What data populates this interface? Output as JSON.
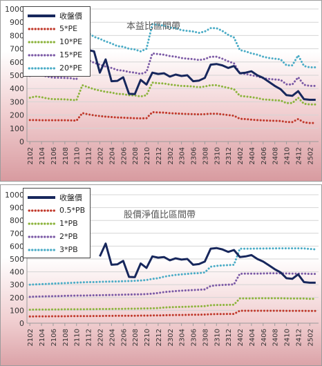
{
  "chart_data": [
    {
      "type": "line",
      "title": "本益比區間帶",
      "ylim": [
        0,
        1000
      ],
      "yticks": [
        0,
        100,
        200,
        300,
        400,
        500,
        600,
        700,
        800,
        900,
        1000
      ],
      "x": [
        "2102",
        "2103",
        "2104",
        "2105",
        "2106",
        "2107",
        "2108",
        "2109",
        "2110",
        "2111",
        "2112",
        "2201",
        "2202",
        "2203",
        "2204",
        "2205",
        "2206",
        "2207",
        "2208",
        "2209",
        "2210",
        "2211",
        "2212",
        "2301",
        "2302",
        "2303",
        "2304",
        "2305",
        "2306",
        "2307",
        "2308",
        "2309",
        "2310",
        "2311",
        "2312",
        "2401",
        "2402",
        "2403",
        "2404",
        "2405",
        "2406",
        "2407",
        "2408",
        "2409",
        "2410",
        "2411",
        "2412",
        "2501",
        "2502",
        "2503"
      ],
      "xtick_labels": [
        "2102",
        "2104",
        "2106",
        "2108",
        "2110",
        "2112",
        "2202",
        "2204",
        "2206",
        "2208",
        "2210",
        "2212",
        "2302",
        "2304",
        "2306",
        "2308",
        "2310",
        "2312",
        "2402",
        "2404",
        "2406",
        "2408",
        "2410",
        "2412",
        "2502"
      ],
      "grid": true,
      "legend": "top-left",
      "series": [
        {
          "name": "收盤價",
          "style": "solid",
          "color": "#17275c",
          "values": [
            null,
            null,
            null,
            null,
            null,
            null,
            null,
            null,
            null,
            790,
            690,
            680,
            520,
            620,
            455,
            458,
            485,
            360,
            358,
            465,
            430,
            520,
            510,
            515,
            490,
            505,
            495,
            500,
            455,
            460,
            480,
            580,
            585,
            575,
            555,
            570,
            515,
            520,
            530,
            500,
            480,
            450,
            420,
            395,
            350,
            345,
            380,
            320,
            315,
            315
          ]
        },
        {
          "name": "5*PE",
          "style": "dotted",
          "color": "#c0392b",
          "values": [
            162,
            162,
            161,
            161,
            161,
            161,
            161,
            160,
            158,
            215,
            205,
            198,
            192,
            188,
            185,
            182,
            180,
            178,
            176,
            175,
            176,
            222,
            220,
            218,
            214,
            212,
            210,
            208,
            207,
            205,
            207,
            210,
            210,
            205,
            200,
            195,
            172,
            170,
            165,
            162,
            160,
            158,
            157,
            155,
            148,
            147,
            170,
            145,
            140,
            140
          ]
        },
        {
          "name": "10*PE",
          "style": "dotted",
          "color": "#8db43e",
          "values": [
            330,
            340,
            335,
            325,
            320,
            320,
            318,
            315,
            312,
            425,
            410,
            395,
            385,
            375,
            370,
            360,
            358,
            350,
            348,
            340,
            350,
            445,
            440,
            438,
            430,
            425,
            420,
            418,
            415,
            410,
            415,
            425,
            425,
            415,
            405,
            395,
            345,
            340,
            335,
            328,
            318,
            315,
            312,
            310,
            290,
            290,
            330,
            285,
            280,
            280
          ]
        },
        {
          "name": "15*PE",
          "style": "dotted",
          "color": "#7b5aa6",
          "values": [
            495,
            505,
            500,
            490,
            482,
            482,
            480,
            478,
            470,
            640,
            615,
            595,
            580,
            565,
            555,
            540,
            535,
            525,
            520,
            510,
            525,
            665,
            660,
            655,
            645,
            640,
            630,
            625,
            622,
            615,
            622,
            640,
            640,
            625,
            605,
            590,
            515,
            510,
            500,
            492,
            478,
            472,
            468,
            465,
            432,
            430,
            485,
            428,
            420,
            420
          ]
        },
        {
          "name": "20*PE",
          "style": "dotted",
          "color": "#4bacc6",
          "values": [
            null,
            null,
            null,
            null,
            null,
            null,
            null,
            null,
            null,
            855,
            820,
            790,
            775,
            755,
            740,
            720,
            715,
            700,
            695,
            680,
            700,
            885,
            880,
            875,
            860,
            855,
            840,
            835,
            830,
            820,
            830,
            855,
            855,
            835,
            805,
            785,
            690,
            680,
            665,
            655,
            640,
            630,
            625,
            620,
            575,
            575,
            650,
            570,
            560,
            560
          ]
        }
      ]
    },
    {
      "type": "line",
      "title": "股價淨值比區間帶",
      "ylim": [
        0,
        1000
      ],
      "yticks": [
        0,
        100,
        200,
        300,
        400,
        500,
        600,
        700,
        800,
        900,
        1000
      ],
      "x": [
        "2102",
        "2103",
        "2104",
        "2105",
        "2106",
        "2107",
        "2108",
        "2109",
        "2110",
        "2111",
        "2112",
        "2201",
        "2202",
        "2203",
        "2204",
        "2205",
        "2206",
        "2207",
        "2208",
        "2209",
        "2210",
        "2211",
        "2212",
        "2301",
        "2302",
        "2303",
        "2304",
        "2305",
        "2306",
        "2307",
        "2308",
        "2309",
        "2310",
        "2311",
        "2312",
        "2401",
        "2402",
        "2403",
        "2404",
        "2405",
        "2406",
        "2407",
        "2408",
        "2409",
        "2410",
        "2411",
        "2412",
        "2501",
        "2502",
        "2503"
      ],
      "xtick_labels": [
        "2102",
        "2104",
        "2106",
        "2108",
        "2110",
        "2112",
        "2202",
        "2204",
        "2206",
        "2208",
        "2210",
        "2212",
        "2302",
        "2304",
        "2306",
        "2308",
        "2310",
        "2312",
        "2402",
        "2404",
        "2406",
        "2408",
        "2410",
        "2412",
        "2502"
      ],
      "grid": true,
      "legend": "top-left",
      "series": [
        {
          "name": "收盤價",
          "style": "solid",
          "color": "#17275c",
          "values": [
            null,
            null,
            null,
            null,
            null,
            null,
            null,
            null,
            null,
            null,
            null,
            null,
            520,
            620,
            455,
            458,
            485,
            360,
            358,
            465,
            430,
            520,
            510,
            515,
            490,
            505,
            495,
            500,
            455,
            460,
            480,
            580,
            585,
            575,
            555,
            570,
            515,
            520,
            530,
            500,
            480,
            450,
            420,
            395,
            350,
            345,
            380,
            320,
            315,
            315
          ]
        },
        {
          "name": "0.5*PB",
          "style": "dotted",
          "color": "#c0392b",
          "values": [
            52,
            53,
            53,
            53,
            54,
            54,
            54,
            55,
            55,
            55,
            55,
            56,
            56,
            57,
            57,
            58,
            58,
            58,
            58,
            59,
            59,
            60,
            60,
            62,
            63,
            64,
            64,
            65,
            66,
            66,
            67,
            70,
            71,
            71,
            72,
            72,
            97,
            97,
            97,
            97,
            97,
            97,
            97,
            97,
            96,
            96,
            96,
            96,
            95,
            95
          ]
        },
        {
          "name": "1*PB",
          "style": "dotted",
          "color": "#8db43e",
          "values": [
            105,
            106,
            106,
            106,
            107,
            107,
            108,
            108,
            108,
            108,
            109,
            109,
            110,
            110,
            111,
            112,
            112,
            113,
            113,
            114,
            115,
            116,
            118,
            122,
            124,
            126,
            127,
            128,
            130,
            131,
            133,
            140,
            142,
            142,
            143,
            144,
            193,
            193,
            193,
            194,
            194,
            194,
            194,
            194,
            193,
            192,
            192,
            192,
            190,
            190
          ]
        },
        {
          "name": "2*PB",
          "style": "dotted",
          "color": "#7b5aa6",
          "values": [
            205,
            207,
            208,
            209,
            210,
            211,
            213,
            214,
            215,
            215,
            216,
            217,
            218,
            219,
            220,
            221,
            222,
            223,
            224,
            225,
            227,
            230,
            235,
            242,
            246,
            250,
            253,
            256,
            258,
            260,
            263,
            290,
            295,
            298,
            300,
            302,
            385,
            386,
            386,
            386,
            387,
            388,
            388,
            388,
            387,
            386,
            386,
            386,
            384,
            384
          ]
        },
        {
          "name": "3*PB",
          "style": "dotted",
          "color": "#4bacc6",
          "values": [
            300,
            302,
            304,
            306,
            308,
            310,
            312,
            314,
            316,
            318,
            320,
            320,
            322,
            323,
            324,
            325,
            327,
            328,
            330,
            332,
            336,
            345,
            350,
            362,
            370,
            376,
            380,
            384,
            388,
            390,
            395,
            440,
            446,
            450,
            452,
            455,
            580,
            580,
            580,
            581,
            581,
            582,
            582,
            583,
            583,
            583,
            583,
            582,
            578,
            575
          ]
        }
      ]
    }
  ]
}
